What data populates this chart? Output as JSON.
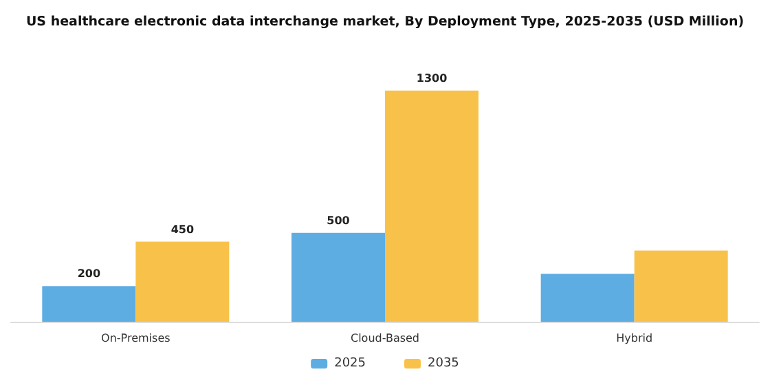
{
  "chart_data": {
    "type": "bar",
    "title": "US healthcare electronic data interchange market, By Deployment Type, 2025-2035 (USD Million)",
    "categories": [
      "On-Premises",
      "Cloud-Based",
      "Hybrid"
    ],
    "series": [
      {
        "name": "2025",
        "color": "#5dade2",
        "values": [
          200,
          500,
          270
        ],
        "value_labels": [
          "200",
          "500",
          null
        ]
      },
      {
        "name": "2035",
        "color": "#f8c24a",
        "values": [
          450,
          1300,
          400
        ],
        "value_labels": [
          "450",
          "1300",
          null
        ]
      }
    ],
    "legend": "bottom",
    "grid": false,
    "tick_labels": "x"
  }
}
